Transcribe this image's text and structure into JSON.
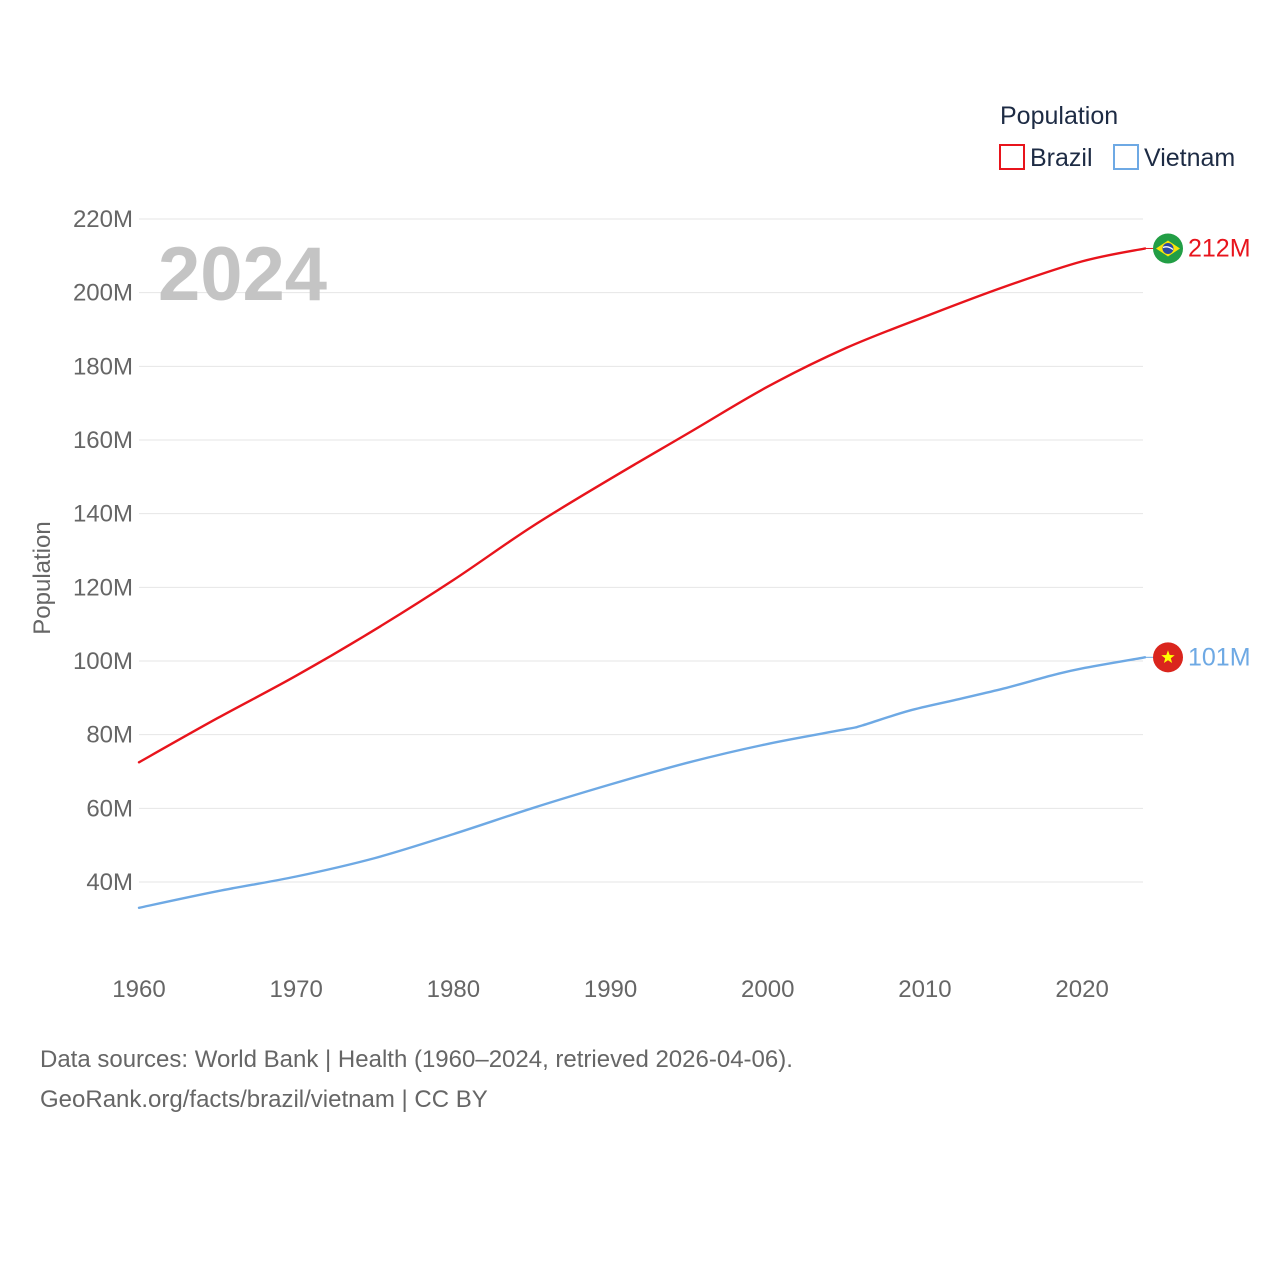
{
  "chart_data": {
    "type": "line",
    "title": "",
    "xlabel": "",
    "ylabel": "Population",
    "xlim": [
      1960,
      2024
    ],
    "ylim": [
      30,
      220
    ],
    "yticks": [
      40,
      60,
      80,
      100,
      120,
      140,
      160,
      180,
      200,
      220
    ],
    "ytick_labels": [
      "40M",
      "60M",
      "80M",
      "100M",
      "120M",
      "140M",
      "160M",
      "180M",
      "200M",
      "220M"
    ],
    "xticks": [
      1960,
      1970,
      1980,
      1990,
      2000,
      2010,
      2020
    ],
    "xtick_labels": [
      "1960",
      "1970",
      "1980",
      "1990",
      "2000",
      "2010",
      "2020"
    ],
    "grid": true,
    "current_year_label": "2024",
    "legend": {
      "title": "Population",
      "position": "top-right"
    },
    "series": [
      {
        "name": "Brazil",
        "color": "#e8141c",
        "flag_icon": "brazil-flag-icon",
        "end_label": "212M",
        "x": [
          1960,
          1965,
          1970,
          1975,
          1980,
          1985,
          1990,
          1995,
          2000,
          2005,
          2010,
          2015,
          2020,
          2024
        ],
        "y": [
          72.5,
          84.5,
          96.0,
          108.5,
          122.0,
          136.5,
          149.5,
          162.0,
          174.5,
          185.0,
          193.5,
          201.5,
          208.5,
          212.0
        ]
      },
      {
        "name": "Vietnam",
        "color": "#6ea9e4",
        "flag_icon": "vietnam-flag-icon",
        "end_label": "101M",
        "x": [
          1960,
          1965,
          1970,
          1975,
          1980,
          1985,
          1990,
          1995,
          2000,
          2005,
          2006,
          2009,
          2012,
          2015,
          2018,
          2020,
          2024
        ],
        "y": [
          33.0,
          37.5,
          41.5,
          46.5,
          53.0,
          60.0,
          66.5,
          72.5,
          77.5,
          81.5,
          82.5,
          86.5,
          89.5,
          92.5,
          96.0,
          98.0,
          101.0
        ]
      }
    ]
  },
  "footer": {
    "source_line": "Data sources: World Bank | Health (1960–2024, retrieved 2026-04-06).",
    "credit_line": "GeoRank.org/facts/brazil/vietnam | CC BY"
  }
}
